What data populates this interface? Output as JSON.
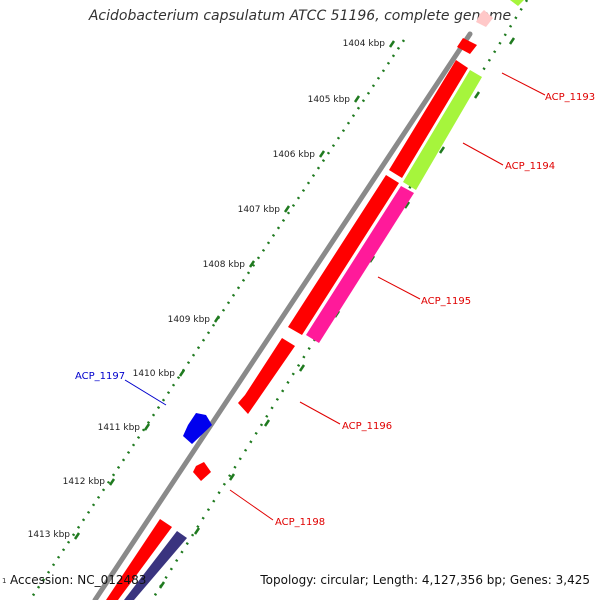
{
  "map_title": "Acidobacterium capsulatum ATCC 51196, complete genome",
  "footer": {
    "accession": "Accession: NC_012483",
    "stats": "Topology: circular; Length: 4,127,356 bp; Genes: 3,425"
  },
  "corner_tick": "1",
  "ruler_labels": [
    "1404 kbp",
    "1405 kbp",
    "1406 kbp",
    "1407 kbp",
    "1408 kbp",
    "1409 kbp",
    "1410 kbp",
    "1411 kbp",
    "1412 kbp",
    "1413 kbp"
  ],
  "gene_labels": {
    "acp_1193": "ACP_1193",
    "acp_1194": "ACP_1194",
    "acp_1195": "ACP_1195",
    "acp_1196": "ACP_1196",
    "acp_1197": "ACP_1197",
    "acp_1198": "ACP_1198"
  },
  "colors": {
    "backbone": "#8a8a8a",
    "gene_red": "#ff0000",
    "cds_lime": "#a6f53c",
    "cds_magenta": "#ff1a9a",
    "cds_navy": "#3a347f",
    "cds_pink": "#ffc8c8",
    "ruler_green": "#1f7a1f",
    "label_red": "#e00000",
    "label_blue": "#0000cc"
  }
}
